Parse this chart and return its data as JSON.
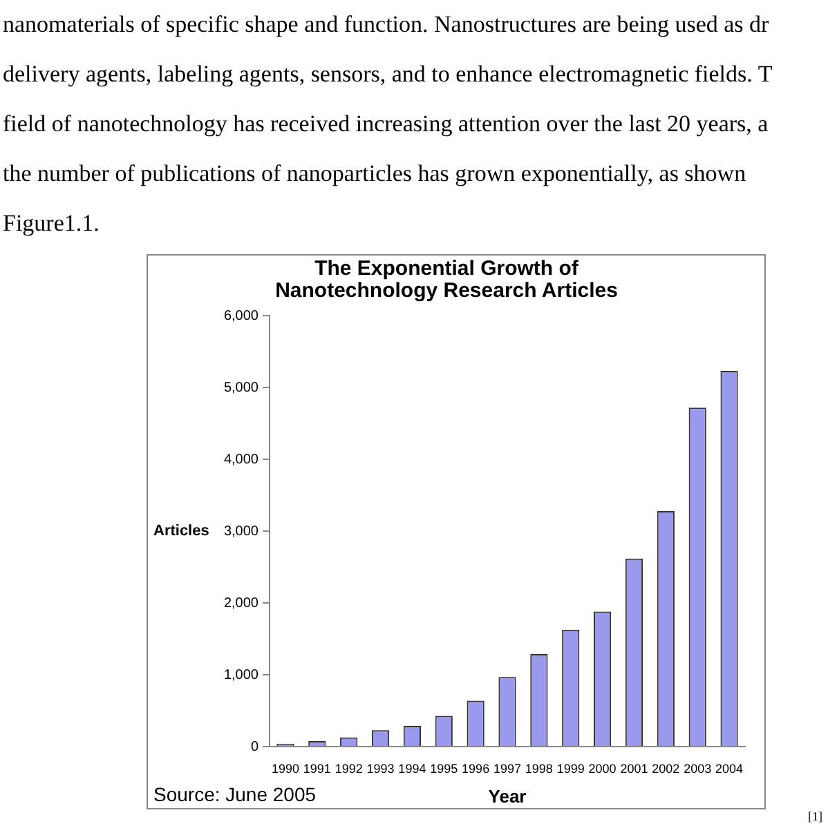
{
  "chart_data": {
    "type": "bar",
    "title": "The Exponential Growth of\nNanotechnology Research Articles",
    "xlabel": "Year",
    "ylabel": "Articles",
    "categories": [
      "1990",
      "1991",
      "1992",
      "1993",
      "1994",
      "1995",
      "1996",
      "1997",
      "1998",
      "1999",
      "2000",
      "2001",
      "2002",
      "2003",
      "2004"
    ],
    "values": [
      40,
      80,
      130,
      230,
      290,
      430,
      640,
      970,
      1290,
      1630,
      1880,
      2620,
      3280,
      4720,
      5230
    ],
    "color": "#9999ee",
    "ylim": [
      0,
      6000
    ],
    "yticks": [
      {
        "value": 0,
        "label": "0"
      },
      {
        "value": 1000,
        "label": "1,000"
      },
      {
        "value": 2000,
        "label": "2,000"
      },
      {
        "value": 3000,
        "label": "3,000"
      },
      {
        "value": 4000,
        "label": "4,000"
      },
      {
        "value": 5000,
        "label": "5,000"
      },
      {
        "value": 6000,
        "label": "6,000"
      }
    ],
    "grid": false,
    "legend": false,
    "annotations": [
      "nanomaterials of specific shape and function. Nanostructures are being used as dr\ndelivery agents, labeling agents, sensors, and to enhance electromagnetic fields. T\nfield of nanotechnology has received increasing attention over the last 20 years, a\nthe number of publications of nanoparticles has grown exponentially, as shown\nFigure1.1.",
      "Source: June 2005",
      "[1]"
    ]
  }
}
